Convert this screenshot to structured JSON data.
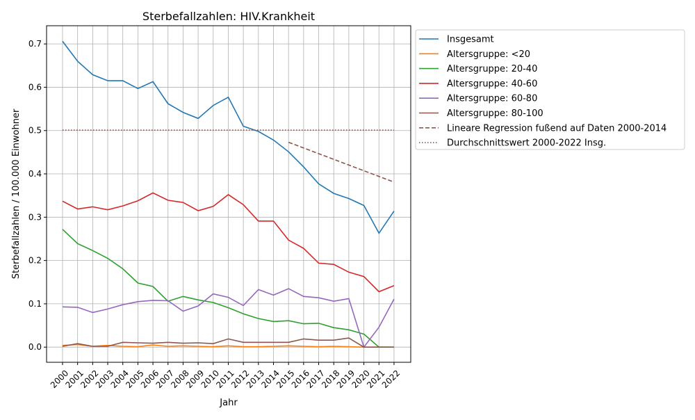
{
  "chart_data": {
    "type": "line",
    "title": "Sterbefallzahlen: HIV.Krankheit",
    "xlabel": "Jahr",
    "ylabel": "Sterbefallzahlen / 100.000 Einwohner",
    "xlim": [
      1998.94,
      2023.11
    ],
    "ylim": [
      -0.035,
      0.742
    ],
    "grid": true,
    "legend_position": "outside-right-top",
    "x": [
      2000,
      2001,
      2002,
      2003,
      2004,
      2005,
      2006,
      2007,
      2008,
      2009,
      2010,
      2011,
      2012,
      2013,
      2014,
      2015,
      2016,
      2017,
      2018,
      2019,
      2020,
      2021,
      2022
    ],
    "x_tick_labels": [
      "2000",
      "2001",
      "2002",
      "2003",
      "2004",
      "2005",
      "2006",
      "2007",
      "2008",
      "2009",
      "2010",
      "2011",
      "2012",
      "2013",
      "2014",
      "2015",
      "2016",
      "2017",
      "2018",
      "2019",
      "2020",
      "2021",
      "2022"
    ],
    "y_ticks": [
      0.0,
      0.1,
      0.2,
      0.3,
      0.4,
      0.5,
      0.6,
      0.7
    ],
    "y_tick_labels": [
      "0.0",
      "0.1",
      "0.2",
      "0.3",
      "0.4",
      "0.5",
      "0.6",
      "0.7"
    ],
    "series": [
      {
        "name": "Insgesamt",
        "color": "#1f77b4",
        "style": "solid",
        "values": [
          0.706,
          0.66,
          0.629,
          0.615,
          0.615,
          0.597,
          0.613,
          0.562,
          0.542,
          0.528,
          0.558,
          0.577,
          0.51,
          0.498,
          0.478,
          0.451,
          0.416,
          0.377,
          0.355,
          0.343,
          0.327,
          0.263,
          0.314
        ]
      },
      {
        "name": "Altersgruppe: <20",
        "color": "#ff7f0e",
        "style": "solid",
        "values": [
          0.004,
          0.006,
          0.002,
          0.004,
          0.002,
          0.001,
          0.005,
          0.002,
          0.003,
          0.002,
          0.001,
          0.003,
          0.001,
          0.001,
          0.002,
          0.003,
          0.002,
          0.001,
          0.002,
          0.001,
          0.0,
          0.0,
          0.0
        ]
      },
      {
        "name": "Altersgruppe: 20-40",
        "color": "#2ca02c",
        "style": "solid",
        "values": [
          0.272,
          0.239,
          0.223,
          0.205,
          0.181,
          0.148,
          0.14,
          0.106,
          0.117,
          0.109,
          0.103,
          0.091,
          0.077,
          0.066,
          0.059,
          0.061,
          0.054,
          0.055,
          0.045,
          0.04,
          0.03,
          0.0,
          0.0
        ]
      },
      {
        "name": "Altersgruppe: 40-60",
        "color": "#d62728",
        "style": "solid",
        "values": [
          0.337,
          0.319,
          0.324,
          0.317,
          0.326,
          0.338,
          0.356,
          0.339,
          0.334,
          0.315,
          0.325,
          0.352,
          0.329,
          0.291,
          0.291,
          0.247,
          0.228,
          0.194,
          0.191,
          0.173,
          0.163,
          0.128,
          0.142
        ]
      },
      {
        "name": "Altersgruppe: 60-80",
        "color": "#9467bd",
        "style": "solid",
        "values": [
          0.093,
          0.092,
          0.08,
          0.088,
          0.098,
          0.105,
          0.108,
          0.107,
          0.083,
          0.095,
          0.123,
          0.115,
          0.096,
          0.133,
          0.12,
          0.135,
          0.117,
          0.114,
          0.106,
          0.112,
          0.0,
          0.046,
          0.111
        ]
      },
      {
        "name": "Altersgruppe: 80-100",
        "color": "#8c564b",
        "style": "solid",
        "values": [
          0.002,
          0.008,
          0.002,
          0.002,
          0.011,
          0.01,
          0.009,
          0.011,
          0.009,
          0.01,
          0.008,
          0.019,
          0.011,
          0.011,
          0.011,
          0.011,
          0.019,
          0.016,
          0.016,
          0.021,
          0.0,
          0.0,
          0.0
        ]
      },
      {
        "name": "Lineare Regression fußend auf Daten 2000-2014",
        "color": "#8c564b",
        "style": "dashed",
        "x": [
          2015,
          2022
        ],
        "values": [
          0.473,
          0.381
        ]
      },
      {
        "name": "Durchschnittswert 2000-2022 Insg.",
        "color": "#8c564b",
        "style": "dotted",
        "x": [
          2000,
          2022
        ],
        "values": [
          0.501,
          0.501
        ]
      }
    ]
  }
}
